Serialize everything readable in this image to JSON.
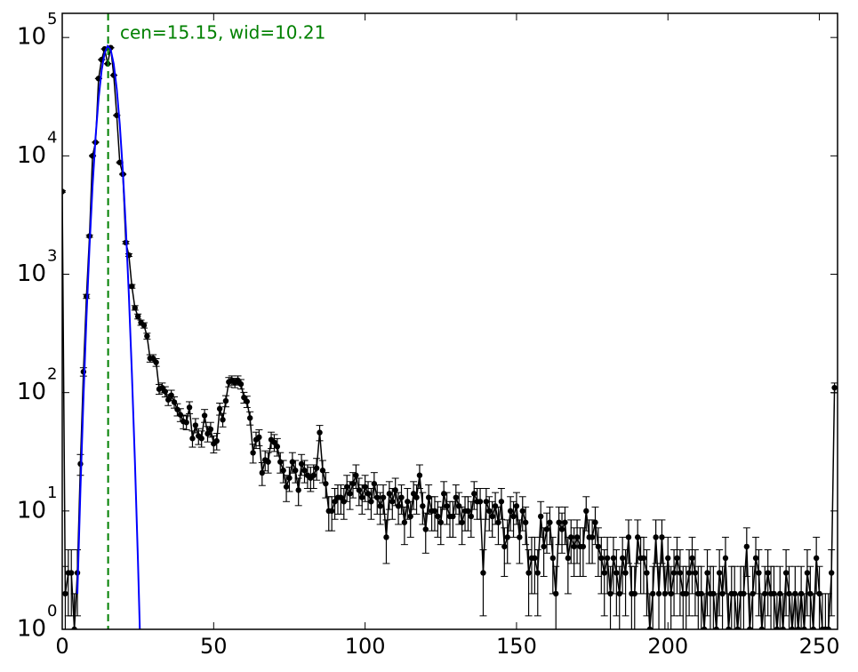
{
  "chart_data": {
    "type": "line",
    "log_y": true,
    "xlim": [
      0,
      256
    ],
    "ylim": [
      1,
      160000
    ],
    "xticks": [
      0,
      50,
      100,
      150,
      200,
      250
    ],
    "yticks": [
      {
        "value": 1,
        "label": "10",
        "exponent": "0"
      },
      {
        "value": 10,
        "label": "10",
        "exponent": "1"
      },
      {
        "value": 100,
        "label": "10",
        "exponent": "2"
      },
      {
        "value": 1000,
        "label": "10",
        "exponent": "3"
      },
      {
        "value": 10000,
        "label": "10",
        "exponent": "4"
      },
      {
        "value": 100000,
        "label": "10",
        "exponent": "5"
      }
    ],
    "annotation": "cen=15.15, wid=10.21",
    "marker": {
      "x": 15.15,
      "color": "#008000"
    },
    "data": {
      "color": "#000000",
      "x": [
        0,
        1,
        2,
        3,
        4,
        5,
        6,
        7,
        8,
        9,
        10,
        11,
        12,
        13,
        14,
        15,
        16,
        17,
        18,
        19,
        20,
        21,
        22,
        23,
        24,
        25,
        26,
        27,
        28,
        29,
        30,
        31,
        32,
        33,
        34,
        35,
        36,
        37,
        38,
        39,
        40,
        41,
        42,
        43,
        44,
        45,
        46,
        47,
        48,
        49,
        50,
        51,
        52,
        53,
        54,
        55,
        56,
        57,
        58,
        59,
        60,
        61,
        62,
        63,
        64,
        65,
        66,
        67,
        68,
        69,
        70,
        71,
        72,
        73,
        74,
        75,
        76,
        77,
        78,
        79,
        80,
        81,
        82,
        83,
        84,
        85,
        86,
        87,
        88,
        89,
        90,
        91,
        92,
        93,
        94,
        95,
        96,
        97,
        98,
        99,
        100,
        101,
        102,
        103,
        104,
        105,
        106,
        107,
        108,
        109,
        110,
        111,
        112,
        113,
        114,
        115,
        116,
        117,
        118,
        119,
        120,
        121,
        122,
        123,
        124,
        125,
        126,
        127,
        128,
        129,
        130,
        131,
        132,
        133,
        134,
        135,
        136,
        137,
        138,
        139,
        140,
        141,
        142,
        143,
        144,
        145,
        146,
        147,
        148,
        149,
        150,
        151,
        152,
        153,
        154,
        155,
        156,
        157,
        158,
        159,
        160,
        161,
        162,
        163,
        164,
        165,
        166,
        167,
        168,
        169,
        170,
        171,
        172,
        173,
        174,
        175,
        176,
        177,
        178,
        179,
        180,
        181,
        182,
        183,
        184,
        185,
        186,
        187,
        188,
        189,
        190,
        191,
        192,
        193,
        194,
        195,
        196,
        197,
        198,
        199,
        200,
        201,
        202,
        203,
        204,
        205,
        206,
        207,
        208,
        209,
        210,
        211,
        212,
        213,
        214,
        215,
        216,
        217,
        218,
        219,
        220,
        221,
        222,
        223,
        224,
        225,
        226,
        227,
        228,
        229,
        230,
        231,
        232,
        233,
        234,
        235,
        236,
        237,
        238,
        239,
        240,
        241,
        242,
        243,
        244,
        245,
        246,
        247,
        248,
        249,
        250,
        251,
        252,
        253,
        254,
        255
      ],
      "values": [
        5000,
        2,
        3,
        3,
        1,
        3,
        25,
        150,
        650,
        2100,
        10000,
        13000,
        45000,
        65000,
        80000,
        60000,
        82000,
        48000,
        22000,
        8800,
        7000,
        1850,
        1450,
        790,
        520,
        440,
        390,
        370,
        300,
        195,
        195,
        180,
        107,
        110,
        102,
        87,
        95,
        83,
        72,
        65,
        57,
        56,
        75,
        41,
        53,
        43,
        41,
        64,
        45,
        49,
        37,
        39,
        73,
        59,
        85,
        123,
        127,
        121,
        127,
        118,
        91,
        84,
        61,
        31,
        40,
        42,
        21,
        27,
        26,
        40,
        38,
        35,
        26,
        22,
        16,
        19,
        26,
        22,
        15,
        25,
        22,
        20,
        19,
        20,
        23,
        46,
        22,
        17,
        10,
        10,
        12,
        13,
        13,
        12,
        16,
        14,
        17,
        20,
        15,
        13,
        16,
        14,
        12,
        17,
        13,
        11,
        13,
        6,
        14,
        12,
        15,
        11,
        13,
        8,
        12,
        9,
        14,
        13,
        20,
        11,
        7,
        13,
        10,
        10,
        9,
        8,
        14,
        11,
        9,
        9,
        13,
        11,
        8,
        10,
        10,
        9,
        14,
        12,
        12,
        3,
        12,
        10,
        9,
        11,
        8,
        12,
        5,
        6,
        10,
        9,
        11,
        6,
        10,
        8,
        3,
        4,
        4,
        3,
        9,
        5,
        7,
        8,
        4,
        2,
        8,
        7,
        8,
        4,
        6,
        5,
        6,
        5,
        5,
        10,
        6,
        6,
        8,
        5,
        4,
        3,
        4,
        2,
        4,
        3,
        2,
        4,
        3,
        6,
        2,
        2,
        6,
        4,
        4,
        3,
        1,
        2,
        6,
        2,
        6,
        2,
        4,
        2,
        3,
        4,
        3,
        2,
        2,
        3,
        4,
        3,
        2,
        2,
        1,
        3,
        2,
        2,
        1,
        3,
        2,
        4,
        1,
        2,
        2,
        1,
        2,
        2,
        5,
        1,
        2,
        4,
        3,
        1,
        2,
        3,
        2,
        2,
        1,
        2,
        1,
        3,
        2,
        1,
        2,
        1,
        2,
        1,
        3,
        2,
        1,
        4,
        2,
        1,
        1,
        1,
        3,
        110
      ],
      "errors": [
        70.7,
        1.4,
        1.7,
        1.7,
        1,
        1.7,
        5,
        12.2,
        25.5,
        45.8,
        100,
        114,
        212,
        255,
        283,
        245,
        286,
        219,
        148,
        93.8,
        83.7,
        43,
        38.1,
        28.1,
        22.8,
        21,
        19.7,
        19.2,
        17.3,
        14,
        14,
        13.4,
        10.3,
        10.5,
        10.1,
        9.3,
        9.7,
        9.1,
        8.5,
        8.1,
        7.5,
        7.5,
        8.7,
        6.4,
        7.3,
        6.6,
        6.4,
        8,
        6.7,
        7,
        6.1,
        6.2,
        8.5,
        7.7,
        9.2,
        11.1,
        11.3,
        11,
        11.3,
        10.9,
        9.5,
        9.2,
        7.8,
        5.6,
        6.3,
        6.5,
        4.6,
        5.2,
        5.1,
        6.3,
        6.2,
        5.9,
        5.1,
        4.7,
        4,
        4.4,
        5.1,
        4.7,
        3.9,
        5,
        4.7,
        4.5,
        4.4,
        4.5,
        4.8,
        6.8,
        4.7,
        4.1,
        3.2,
        3.2,
        3.5,
        3.6,
        3.6,
        3.5,
        4,
        3.7,
        4.1,
        4.5,
        3.9,
        3.6,
        4,
        3.7,
        3.5,
        4.1,
        3.6,
        3.3,
        3.6,
        2.4,
        3.7,
        3.5,
        3.9,
        3.3,
        3.6,
        2.8,
        3.5,
        3,
        3.7,
        3.6,
        4.5,
        3.3,
        2.6,
        3.6,
        3.2,
        3.2,
        3,
        2.8,
        3.7,
        3.3,
        3,
        3,
        3.6,
        3.3,
        2.8,
        3.2,
        3.2,
        3,
        3.7,
        3.5,
        3.5,
        1.7,
        3.5,
        3.2,
        3,
        3.3,
        2.8,
        3.5,
        2.2,
        2.4,
        3.2,
        3,
        3.3,
        2.4,
        3.2,
        2.8,
        1.7,
        2,
        2,
        1.7,
        3,
        2.2,
        2.6,
        2.8,
        2,
        1.4,
        2.8,
        2.6,
        2.8,
        2,
        2.4,
        2.2,
        2.4,
        2.2,
        2.2,
        3.2,
        2.4,
        2.4,
        2.8,
        2.2,
        2,
        1.7,
        2,
        1.4,
        2,
        1.7,
        1.4,
        2,
        1.7,
        2.4,
        1.4,
        1.4,
        2.4,
        2,
        2,
        1.7,
        1,
        1.4,
        2.4,
        1.4,
        2.4,
        1.4,
        2,
        1.4,
        1.7,
        2,
        1.7,
        1.4,
        1.4,
        1.7,
        2,
        1.7,
        1.4,
        1.4,
        1,
        1.7,
        1.4,
        1.4,
        1,
        1.7,
        1.4,
        2,
        1,
        1.4,
        1.4,
        1,
        1.4,
        1.4,
        2.2,
        1,
        1.4,
        2,
        1.7,
        1,
        1.4,
        1.7,
        1.4,
        1.4,
        1,
        1.4,
        1,
        1.7,
        1.4,
        1,
        1.4,
        1,
        1.4,
        1,
        1.7,
        1.4,
        1,
        2,
        1.4,
        1,
        1,
        1,
        1.7,
        10.5
      ]
    },
    "fit": {
      "color": "#0000ff",
      "x": [
        5,
        6,
        7,
        8,
        9,
        10,
        11,
        12,
        13,
        14,
        15,
        16,
        17,
        18,
        19,
        20,
        21,
        22,
        23,
        24,
        25,
        26
      ],
      "values": [
        2,
        15,
        89,
        434,
        1700,
        5490,
        14360,
        30500,
        52700,
        74100,
        84800,
        78900,
        59700,
        36700,
        18400,
        7480,
        2470,
        665,
        145,
        26,
        3.8,
        0.44
      ]
    }
  }
}
